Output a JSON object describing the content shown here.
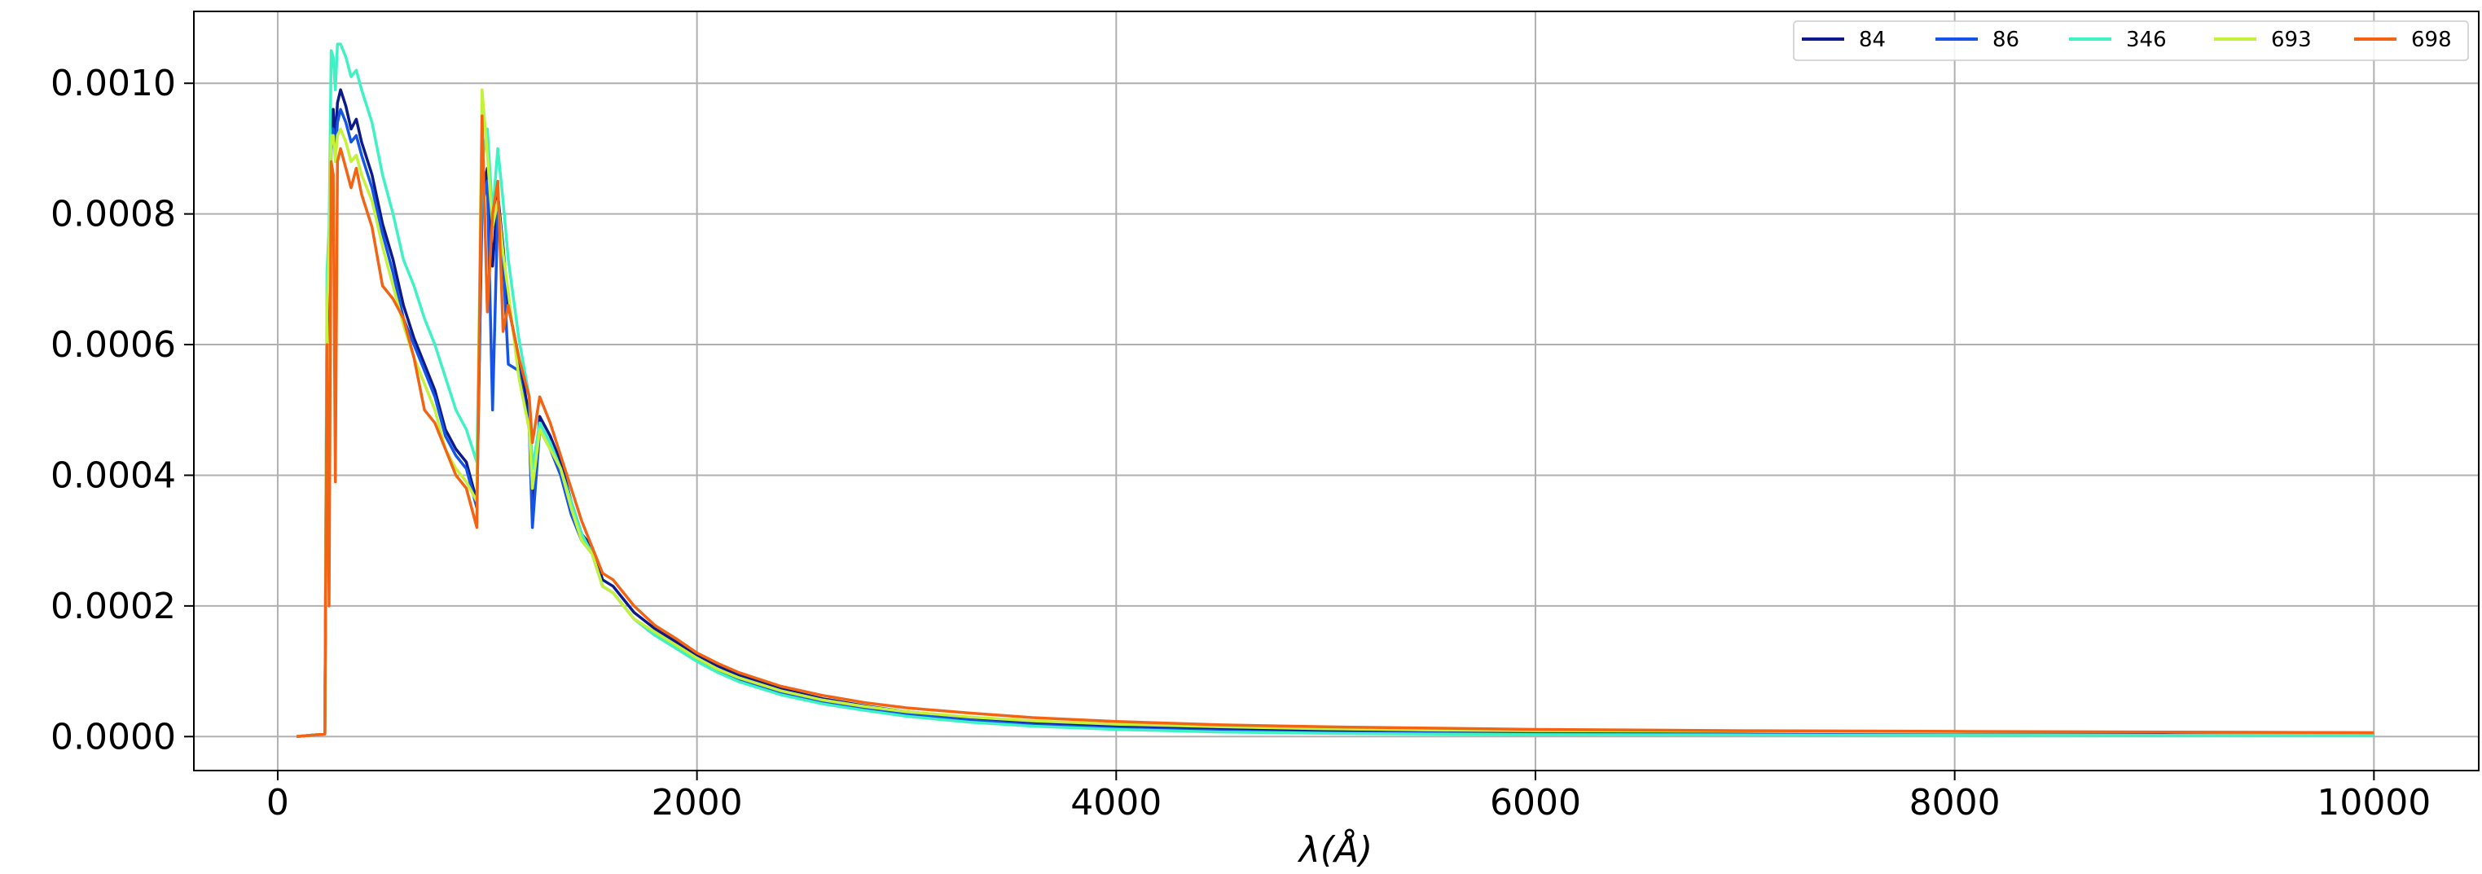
{
  "chart_data": {
    "type": "line",
    "title": "",
    "xlabel": "λ(Å)",
    "ylabel": "",
    "xlim": [
      -400,
      10500
    ],
    "ylim": [
      -5.2e-05,
      0.00111
    ],
    "xticks": [
      0,
      2000,
      4000,
      6000,
      8000,
      10000
    ],
    "xtick_labels": [
      "0",
      "2000",
      "4000",
      "6000",
      "8000",
      "10000"
    ],
    "yticks": [
      0.0,
      0.0002,
      0.0004,
      0.0006,
      0.0008,
      0.001
    ],
    "ytick_labels": [
      "0.0000",
      "0.0002",
      "0.0004",
      "0.0006",
      "0.0008",
      "0.0010"
    ],
    "grid": true,
    "legend_position": "top-right",
    "x": [
      90,
      225,
      235,
      245,
      255,
      265,
      275,
      285,
      300,
      325,
      350,
      375,
      400,
      450,
      500,
      550,
      600,
      650,
      700,
      750,
      800,
      850,
      900,
      950,
      975,
      1000,
      1025,
      1050,
      1075,
      1100,
      1150,
      1200,
      1215,
      1250,
      1300,
      1350,
      1400,
      1450,
      1500,
      1550,
      1600,
      1700,
      1800,
      1900,
      2000,
      2100,
      2200,
      2400,
      2600,
      2800,
      3000,
      3300,
      3600,
      4000,
      4500,
      5000,
      5500,
      6000,
      7000,
      8000,
      9000,
      10000
    ],
    "series": [
      {
        "name": "84",
        "color": "#0c1a8c",
        "values": [
          0.0,
          4e-06,
          0.00063,
          0.00074,
          0.00093,
          0.00096,
          0.00091,
          0.00097,
          0.00099,
          0.000965,
          0.00093,
          0.000945,
          0.00091,
          0.00086,
          0.000785,
          0.00073,
          0.00066,
          0.00061,
          0.00057,
          0.00053,
          0.00047,
          0.00044,
          0.00042,
          0.00036,
          0.00083,
          0.00087,
          0.00072,
          0.00083,
          0.00075,
          0.00066,
          0.00058,
          0.00049,
          0.00035,
          0.00049,
          0.00046,
          0.00042,
          0.00036,
          0.00031,
          0.00029,
          0.00024,
          0.00023,
          0.00019,
          0.000165,
          0.000145,
          0.000125,
          0.000108,
          9.4e-05,
          7.3e-05,
          5.8e-05,
          4.7e-05,
          3.8e-05,
          2.9e-05,
          2.2e-05,
          1.6e-05,
          1.1e-05,
          8e-06,
          6e-06,
          5e-06,
          4e-06,
          3e-06,
          2.5e-06,
          2e-06
        ]
      },
      {
        "name": "86",
        "color": "#1455e6",
        "values": [
          0.0,
          4e-06,
          0.0006,
          0.00072,
          0.0009,
          0.00093,
          0.00089,
          0.00094,
          0.00096,
          0.00094,
          0.00091,
          0.00092,
          0.00089,
          0.00084,
          0.00077,
          0.00071,
          0.00064,
          0.0006,
          0.00056,
          0.00052,
          0.00046,
          0.00043,
          0.00041,
          0.00035,
          0.00081,
          0.00085,
          0.0005,
          0.00081,
          0.00073,
          0.00057,
          0.00056,
          0.00047,
          0.00032,
          0.00047,
          0.00044,
          0.0004,
          0.00034,
          0.0003,
          0.00028,
          0.00023,
          0.00022,
          0.00018,
          0.000155,
          0.000138,
          0.000118,
          0.000101,
          8.8e-05,
          6.8e-05,
          5.4e-05,
          4.3e-05,
          3.4e-05,
          2.5e-05,
          1.8e-05,
          1.3e-05,
          9e-06,
          6e-06,
          5e-06,
          4e-06,
          3e-06,
          2.5e-06,
          2e-06,
          2e-06
        ]
      },
      {
        "name": "346",
        "color": "#3ff2c4",
        "values": [
          0.0,
          4e-06,
          0.00071,
          0.00078,
          0.00105,
          0.00104,
          0.00099,
          0.00106,
          0.00106,
          0.00104,
          0.00101,
          0.00102,
          0.00099,
          0.00094,
          0.00086,
          0.0008,
          0.00073,
          0.00069,
          0.00064,
          0.0006,
          0.00055,
          0.0005,
          0.00047,
          0.00042,
          0.00088,
          0.00093,
          0.0008,
          0.0009,
          0.00082,
          0.00073,
          0.00061,
          0.00052,
          0.00041,
          0.00048,
          0.00045,
          0.00041,
          0.00036,
          0.00031,
          0.00028,
          0.00023,
          0.00022,
          0.00018,
          0.000155,
          0.000135,
          0.000115,
          9.8e-05,
          8.4e-05,
          6.4e-05,
          5e-05,
          4e-05,
          3.1e-05,
          2.2e-05,
          1.6e-05,
          1.1e-05,
          7e-06,
          5e-06,
          4e-06,
          3e-06,
          2.5e-06,
          2e-06,
          2e-06,
          2e-06
        ]
      },
      {
        "name": "693",
        "color": "#c4f23a",
        "values": [
          0.0,
          4e-06,
          0.00065,
          0.00075,
          0.00092,
          0.00092,
          0.00088,
          0.00092,
          0.00093,
          0.00091,
          0.00088,
          0.00089,
          0.00086,
          0.00082,
          0.00075,
          0.00069,
          0.00063,
          0.00058,
          0.00054,
          0.0005,
          0.00044,
          0.00041,
          0.00039,
          0.00036,
          0.00099,
          0.00089,
          0.00078,
          0.00082,
          0.00074,
          0.00068,
          0.00055,
          0.00047,
          0.00038,
          0.00047,
          0.00044,
          0.00041,
          0.00035,
          0.0003,
          0.00028,
          0.00023,
          0.00022,
          0.00018,
          0.00016,
          0.00014,
          0.00012,
          0.000103,
          9e-05,
          7e-05,
          5.6e-05,
          4.6e-05,
          3.8e-05,
          3e-05,
          2.4e-05,
          1.9e-05,
          1.5e-05,
          1.2e-05,
          1e-05,
          9e-06,
          8e-06,
          7e-06,
          7e-06,
          6e-06
        ]
      },
      {
        "name": "698",
        "color": "#f26414",
        "values": [
          0.0,
          4e-06,
          0.0006,
          0.0002,
          0.00088,
          0.00086,
          0.00039,
          0.00088,
          0.0009,
          0.00087,
          0.00084,
          0.00087,
          0.00083,
          0.00078,
          0.00069,
          0.00067,
          0.00064,
          0.00058,
          0.0005,
          0.00048,
          0.00044,
          0.0004,
          0.00038,
          0.00032,
          0.00095,
          0.00065,
          0.0008,
          0.00085,
          0.00062,
          0.00066,
          0.00058,
          0.00052,
          0.00045,
          0.00052,
          0.00048,
          0.00043,
          0.00038,
          0.00033,
          0.00029,
          0.00025,
          0.00024,
          0.0002,
          0.00017,
          0.00015,
          0.000128,
          0.000112,
          9.8e-05,
          7.7e-05,
          6.3e-05,
          5.2e-05,
          4.4e-05,
          3.6e-05,
          2.9e-05,
          2.3e-05,
          1.8e-05,
          1.5e-05,
          1.3e-05,
          1.1e-05,
          9e-06,
          8e-06,
          7e-06,
          6e-06
        ]
      }
    ]
  }
}
